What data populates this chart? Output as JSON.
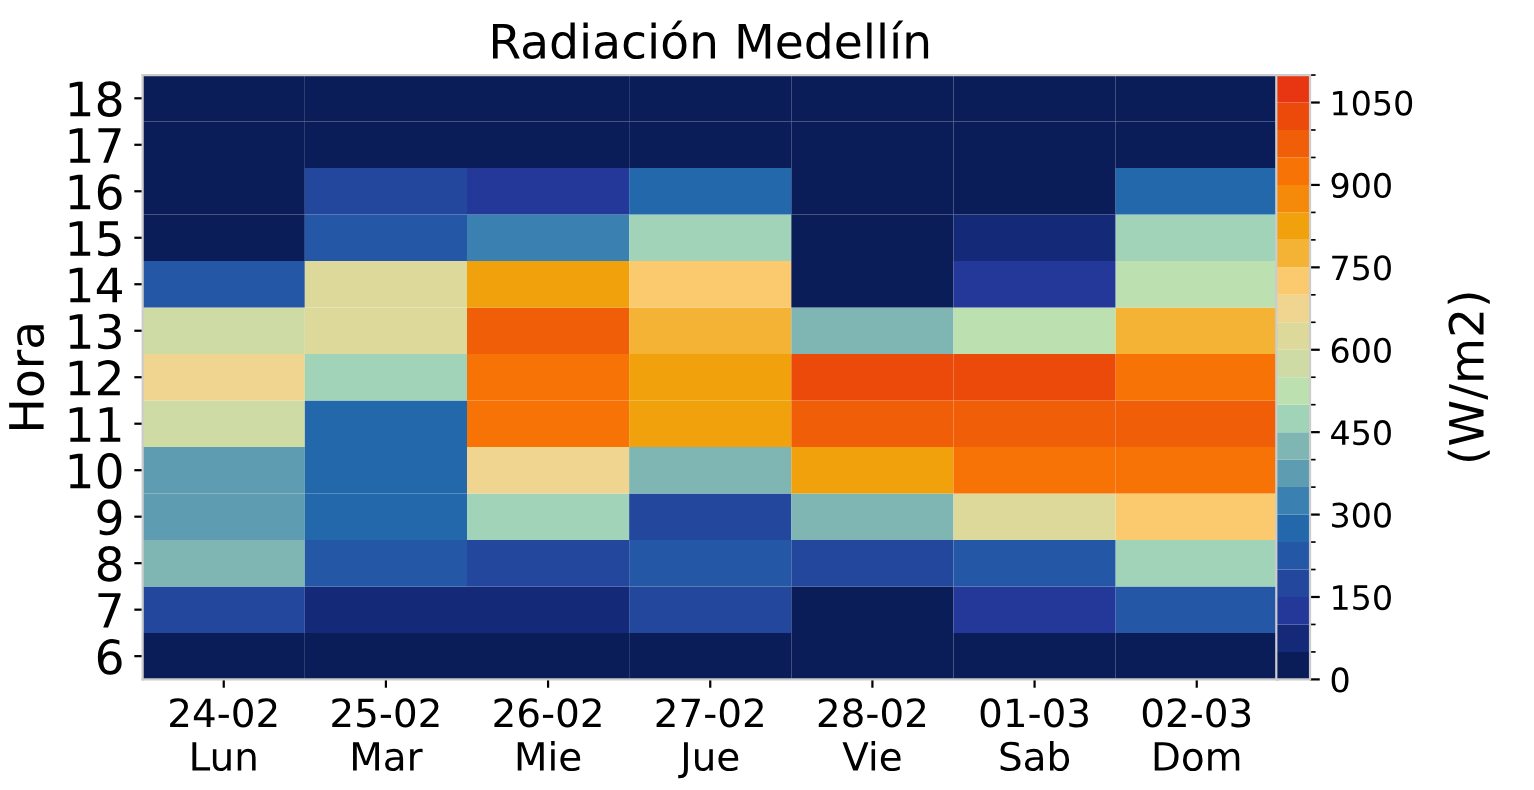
{
  "chart_data": {
    "type": "heatmap",
    "title": "Radiación Medellín",
    "ylabel": "Hora",
    "clabel": "(W/m2)",
    "categories": [
      "24-02\nLun",
      "25-02\nMar",
      "26-02\nMie",
      "27-02\nJue",
      "28-02\nVie",
      "01-03\nSab",
      "02-03\nDom"
    ],
    "y_categories": [
      "18",
      "17",
      "16",
      "15",
      "14",
      "13",
      "12",
      "11",
      "10",
      "9",
      "8",
      "7",
      "6"
    ],
    "cells": [
      [
        25,
        25,
        25,
        25,
        25,
        25,
        25
      ],
      [
        25,
        25,
        25,
        25,
        25,
        25,
        25
      ],
      [
        25,
        175,
        125,
        275,
        25,
        25,
        275
      ],
      [
        25,
        225,
        325,
        475,
        25,
        75,
        475
      ],
      [
        225,
        625,
        825,
        725,
        25,
        125,
        525
      ],
      [
        575,
        625,
        975,
        775,
        425,
        525,
        775
      ],
      [
        675,
        475,
        925,
        825,
        1025,
        1025,
        925
      ],
      [
        575,
        275,
        925,
        825,
        975,
        975,
        975
      ],
      [
        375,
        275,
        675,
        425,
        825,
        925,
        925
      ],
      [
        375,
        275,
        475,
        175,
        425,
        625,
        725
      ],
      [
        425,
        225,
        175,
        225,
        175,
        225,
        475
      ],
      [
        175,
        75,
        75,
        175,
        25,
        125,
        225
      ],
      [
        25,
        25,
        25,
        25,
        25,
        25,
        25
      ]
    ],
    "clim": [
      0,
      1100
    ],
    "cticks": [
      0,
      150,
      300,
      450,
      600,
      750,
      900,
      1050
    ],
    "colors": [
      "#0a1d58",
      "#142a78",
      "#24389a",
      "#22479d",
      "#2458a6",
      "#2268ab",
      "#3a80b0",
      "#5e9cb2",
      "#7fb6b3",
      "#a1d3b8",
      "#bde0b0",
      "#cfdba5",
      "#ddd99a",
      "#efd58f",
      "#fbca6f",
      "#f5b335",
      "#f0a10b",
      "#f58a0a",
      "#f77306",
      "#f05e08",
      "#ec4a0b",
      "#e83512"
    ]
  }
}
